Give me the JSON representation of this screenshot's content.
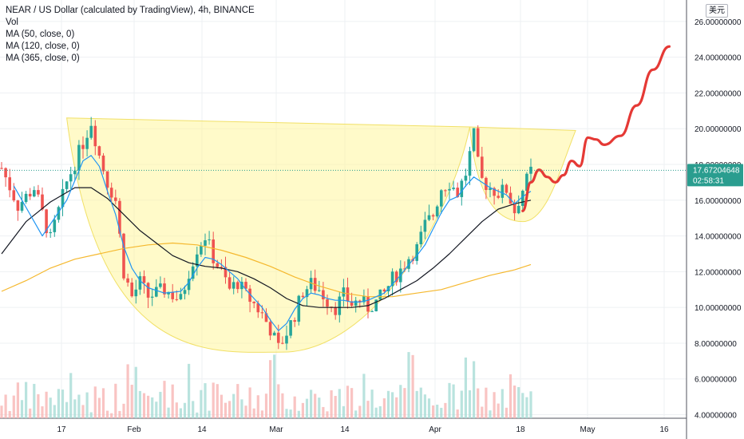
{
  "legend": {
    "title": "NEAR / US Dollar (calculated by TradingView), 4h, BINANCE",
    "vol": "Vol",
    "ma50": "MA (50, close, 0)",
    "ma120": "MA (120, close, 0)",
    "ma365": "MA (365, close, 0)"
  },
  "currency_button": "美元",
  "colors": {
    "up": "#26a69a",
    "down": "#ef5350",
    "vol_up": "#a8dcd6",
    "vol_down": "#f7b5b4",
    "ma50": "#2196f3",
    "ma120": "#131722",
    "ma365": "#f5b82e",
    "cup_fill": "#fff59d",
    "cup_stroke": "#f1e067",
    "projection": "#e53935",
    "price_tag": "#2a9d8f",
    "grid": "#eef0f3"
  },
  "chart_data": {
    "type": "candlestick",
    "title": "NEAR / US Dollar (calculated by TradingView), 4h, BINANCE",
    "ylim": [
      3.8,
      27.2
    ],
    "y_ticks": [
      "4.00000000",
      "6.00000000",
      "8.00000000",
      "10.00000000",
      "12.00000000",
      "14.00000000",
      "16.00000000",
      "18.00000000",
      "20.00000000",
      "22.00000000",
      "24.00000000",
      "26.00000000"
    ],
    "x_ticks": [
      "17",
      "Feb",
      "14",
      "Mar",
      "14",
      "Apr",
      "18",
      "May",
      "16"
    ],
    "last_price": "17.67204648",
    "countdown": "02:58:31",
    "price_path": [
      [
        0,
        17.8
      ],
      [
        4,
        15.7
      ],
      [
        8,
        16.7
      ],
      [
        12,
        13.8
      ],
      [
        16,
        17.0
      ],
      [
        20,
        19.2
      ],
      [
        22,
        20.4
      ],
      [
        24,
        18.5
      ],
      [
        26,
        17.0
      ],
      [
        28,
        16.0
      ],
      [
        30,
        12.0
      ],
      [
        32,
        10.6
      ],
      [
        34,
        11.4
      ],
      [
        36,
        10.6
      ],
      [
        40,
        11.0
      ],
      [
        44,
        10.4
      ],
      [
        46,
        12.0
      ],
      [
        48,
        13.3
      ],
      [
        50,
        14.0
      ],
      [
        52,
        12.8
      ],
      [
        54,
        12.0
      ],
      [
        56,
        11.0
      ],
      [
        58,
        11.4
      ],
      [
        60,
        10.7
      ],
      [
        62,
        10.2
      ],
      [
        64,
        9.6
      ],
      [
        66,
        8.8
      ],
      [
        68,
        7.7
      ],
      [
        70,
        8.6
      ],
      [
        72,
        9.6
      ],
      [
        74,
        10.9
      ],
      [
        76,
        11.3
      ],
      [
        78,
        11.0
      ],
      [
        80,
        10.4
      ],
      [
        82,
        10.0
      ],
      [
        84,
        10.7
      ],
      [
        86,
        10.2
      ],
      [
        88,
        10.4
      ],
      [
        90,
        10.0
      ],
      [
        92,
        10.3
      ],
      [
        94,
        10.8
      ],
      [
        96,
        11.6
      ],
      [
        98,
        12.1
      ],
      [
        100,
        12.8
      ],
      [
        102,
        13.3
      ],
      [
        104,
        14.6
      ],
      [
        106,
        15.2
      ],
      [
        108,
        16.7
      ],
      [
        110,
        17.0
      ],
      [
        112,
        16.4
      ],
      [
        114,
        17.5
      ],
      [
        116,
        19.6
      ],
      [
        117,
        18.0
      ],
      [
        118,
        17.1
      ],
      [
        120,
        16.7
      ],
      [
        122,
        16.4
      ],
      [
        124,
        16.6
      ],
      [
        126,
        15.4
      ],
      [
        128,
        16.6
      ],
      [
        130,
        17.6
      ]
    ],
    "ma50": [
      [
        3,
        16.8
      ],
      [
        10,
        14.0
      ],
      [
        16,
        16.0
      ],
      [
        20,
        18.2
      ],
      [
        22,
        18.5
      ],
      [
        24,
        17.9
      ],
      [
        26,
        16.5
      ],
      [
        28,
        15.2
      ],
      [
        30,
        13.4
      ],
      [
        32,
        12.2
      ],
      [
        34,
        11.5
      ],
      [
        36,
        11.1
      ],
      [
        40,
        10.8
      ],
      [
        44,
        10.9
      ],
      [
        46,
        11.4
      ],
      [
        48,
        12.2
      ],
      [
        50,
        12.8
      ],
      [
        52,
        12.7
      ],
      [
        54,
        12.4
      ],
      [
        56,
        12.0
      ],
      [
        58,
        11.6
      ],
      [
        60,
        11.0
      ],
      [
        62,
        10.5
      ],
      [
        64,
        10.0
      ],
      [
        66,
        9.3
      ],
      [
        68,
        8.7
      ],
      [
        70,
        9.1
      ],
      [
        72,
        9.9
      ],
      [
        74,
        10.5
      ],
      [
        76,
        10.8
      ],
      [
        78,
        10.7
      ],
      [
        80,
        10.5
      ],
      [
        82,
        10.4
      ],
      [
        84,
        10.4
      ],
      [
        86,
        10.3
      ],
      [
        88,
        10.3
      ],
      [
        90,
        10.4
      ],
      [
        92,
        10.6
      ],
      [
        94,
        10.8
      ],
      [
        96,
        11.3
      ],
      [
        98,
        11.8
      ],
      [
        100,
        12.4
      ],
      [
        102,
        12.9
      ],
      [
        104,
        13.5
      ],
      [
        106,
        14.4
      ],
      [
        108,
        15.3
      ],
      [
        110,
        16.0
      ],
      [
        112,
        16.2
      ],
      [
        114,
        16.8
      ],
      [
        116,
        17.3
      ],
      [
        118,
        17.0
      ],
      [
        120,
        16.7
      ],
      [
        122,
        16.5
      ],
      [
        124,
        16.3
      ],
      [
        126,
        15.8
      ],
      [
        128,
        16.2
      ],
      [
        130,
        16.5
      ]
    ],
    "ma120": [
      [
        0,
        13.0
      ],
      [
        6,
        14.8
      ],
      [
        12,
        15.9
      ],
      [
        18,
        16.7
      ],
      [
        22,
        16.7
      ],
      [
        26,
        16.1
      ],
      [
        30,
        15.2
      ],
      [
        34,
        14.3
      ],
      [
        38,
        13.6
      ],
      [
        42,
        12.9
      ],
      [
        46,
        12.5
      ],
      [
        50,
        12.3
      ],
      [
        54,
        12.2
      ],
      [
        58,
        12.0
      ],
      [
        62,
        11.6
      ],
      [
        66,
        11.1
      ],
      [
        70,
        10.5
      ],
      [
        74,
        10.1
      ],
      [
        78,
        10.0
      ],
      [
        82,
        10.0
      ],
      [
        86,
        10.0
      ],
      [
        90,
        10.1
      ],
      [
        94,
        10.5
      ],
      [
        98,
        11.0
      ],
      [
        102,
        11.5
      ],
      [
        106,
        12.2
      ],
      [
        110,
        13.0
      ],
      [
        114,
        13.9
      ],
      [
        118,
        14.8
      ],
      [
        122,
        15.5
      ],
      [
        126,
        15.8
      ],
      [
        130,
        16.0
      ]
    ],
    "ma365": [
      [
        0,
        10.9
      ],
      [
        6,
        11.5
      ],
      [
        12,
        12.2
      ],
      [
        18,
        12.7
      ],
      [
        24,
        13.0
      ],
      [
        30,
        13.3
      ],
      [
        36,
        13.5
      ],
      [
        42,
        13.6
      ],
      [
        48,
        13.5
      ],
      [
        54,
        13.2
      ],
      [
        60,
        12.8
      ],
      [
        66,
        12.3
      ],
      [
        72,
        11.7
      ],
      [
        78,
        11.2
      ],
      [
        84,
        10.8
      ],
      [
        90,
        10.6
      ],
      [
        96,
        10.6
      ],
      [
        102,
        10.8
      ],
      [
        108,
        11.0
      ],
      [
        114,
        11.4
      ],
      [
        120,
        11.8
      ],
      [
        126,
        12.1
      ],
      [
        130,
        12.4
      ]
    ],
    "cup_and_handle": {
      "left_rim": [
        16,
        20.6
      ],
      "bottom": [
        69,
        7.5
      ],
      "right_rim": [
        115,
        20.1
      ],
      "handle_end": [
        141,
        19.9
      ],
      "handle_bottom": [
        128,
        14.8
      ]
    },
    "projection": [
      [
        128,
        15.4
      ],
      [
        130,
        17.0
      ],
      [
        132,
        17.7
      ],
      [
        134,
        17.3
      ],
      [
        136,
        17.0
      ],
      [
        138,
        17.4
      ],
      [
        140,
        18.2
      ],
      [
        142,
        17.9
      ],
      [
        144,
        19.5
      ],
      [
        146,
        19.4
      ],
      [
        148,
        19.1
      ],
      [
        152,
        19.6
      ],
      [
        156,
        21.3
      ],
      [
        160,
        23.3
      ],
      [
        164,
        24.6
      ]
    ],
    "volume_relative": "vol_seed"
  }
}
